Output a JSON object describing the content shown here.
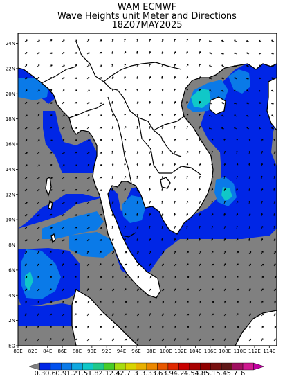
{
  "title": {
    "line1": "WAM ECMWF",
    "line2": "Wave Heights unit Meter and Directions",
    "line3": "18Z07MAY2025"
  },
  "axes": {
    "lon_labels": [
      "80E",
      "82E",
      "84E",
      "86E",
      "88E",
      "90E",
      "92E",
      "94E",
      "96E",
      "98E",
      "100E",
      "102E",
      "104E",
      "106E",
      "108E",
      "110E",
      "112E",
      "114E"
    ],
    "lat_labels": [
      "EQ",
      "2N",
      "4N",
      "6N",
      "8N",
      "10N",
      "12N",
      "14N",
      "16N",
      "18N",
      "20N",
      "22N",
      "24N"
    ],
    "lon_range": [
      80,
      115
    ],
    "lat_range": [
      0,
      25
    ]
  },
  "legend": {
    "labels": [
      "0.3",
      "0.6",
      "0.9",
      "1.2",
      "1.5",
      "1.8",
      "2.1",
      "2.4",
      "2.7",
      "3",
      "3.3",
      "3.6",
      "3.9",
      "4.2",
      "4.5",
      "4.8",
      "5.1",
      "5.4",
      "5.7",
      "6"
    ],
    "colors": [
      "#808080",
      "#0026e6",
      "#0050ee",
      "#0a7ae8",
      "#10a8e0",
      "#10c8c8",
      "#20c88a",
      "#48cc28",
      "#a8dc10",
      "#d8d400",
      "#e8b000",
      "#ec8800",
      "#e85800",
      "#e02800",
      "#c80000",
      "#a80000",
      "#900000",
      "#781010",
      "#601818",
      "#a01060",
      "#d01890",
      "#c000a0"
    ]
  },
  "colors": {
    "land_fill": "#ffffff",
    "low_wave_gray": "#808080",
    "wave_blue_dark": "#0026e6",
    "wave_blue_mid": "#0a7ae8",
    "wave_cyan": "#10c8c8"
  }
}
